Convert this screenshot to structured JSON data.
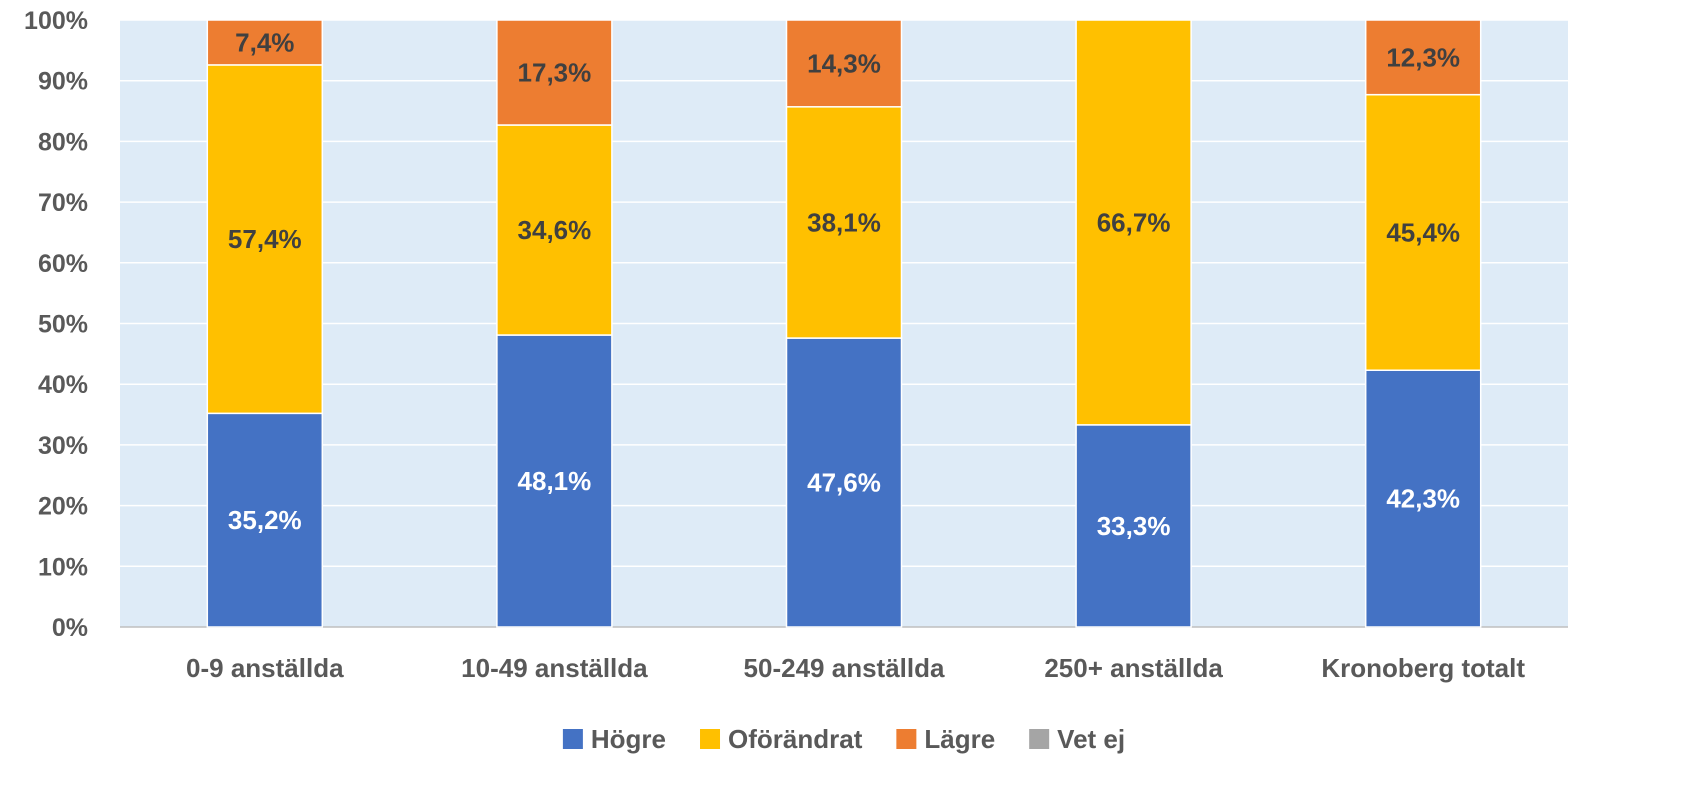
{
  "chart_data": {
    "type": "bar",
    "stacked": true,
    "percent": true,
    "categories": [
      "0-9 anställda",
      "10-49 anställda",
      "50-249 anställda",
      "250+ anställda",
      "Kronoberg totalt"
    ],
    "series": [
      {
        "name": "Högre",
        "color": "#4472C4",
        "label_color": "#ffffff",
        "values": [
          35.2,
          48.1,
          47.6,
          33.3,
          42.3
        ],
        "labels": [
          "35,2%",
          "48,1%",
          "47,6%",
          "33,3%",
          "42,3%"
        ]
      },
      {
        "name": "Oförändrat",
        "color": "#FFC000",
        "label_color": "#404040",
        "values": [
          57.4,
          34.6,
          38.1,
          66.7,
          45.4
        ],
        "labels": [
          "57,4%",
          "34,6%",
          "38,1%",
          "66,7%",
          "45,4%"
        ]
      },
      {
        "name": "Lägre",
        "color": "#ED7D31",
        "label_color": "#404040",
        "values": [
          7.4,
          17.3,
          14.3,
          0,
          12.3
        ],
        "labels": [
          "7,4%",
          "17,3%",
          "14,3%",
          "",
          "12,3%"
        ]
      },
      {
        "name": "Vet ej",
        "color": "#A5A5A5",
        "label_color": "#404040",
        "values": [
          0,
          0,
          0,
          0,
          0
        ],
        "labels": [
          "",
          "",
          "",
          "",
          ""
        ]
      }
    ],
    "ylim": [
      0,
      100
    ],
    "yticks": [
      "0%",
      "10%",
      "20%",
      "30%",
      "40%",
      "50%",
      "60%",
      "70%",
      "80%",
      "90%",
      "100%"
    ],
    "grid": true,
    "plot_background": "#DEEBF7",
    "legend": "bottom"
  }
}
